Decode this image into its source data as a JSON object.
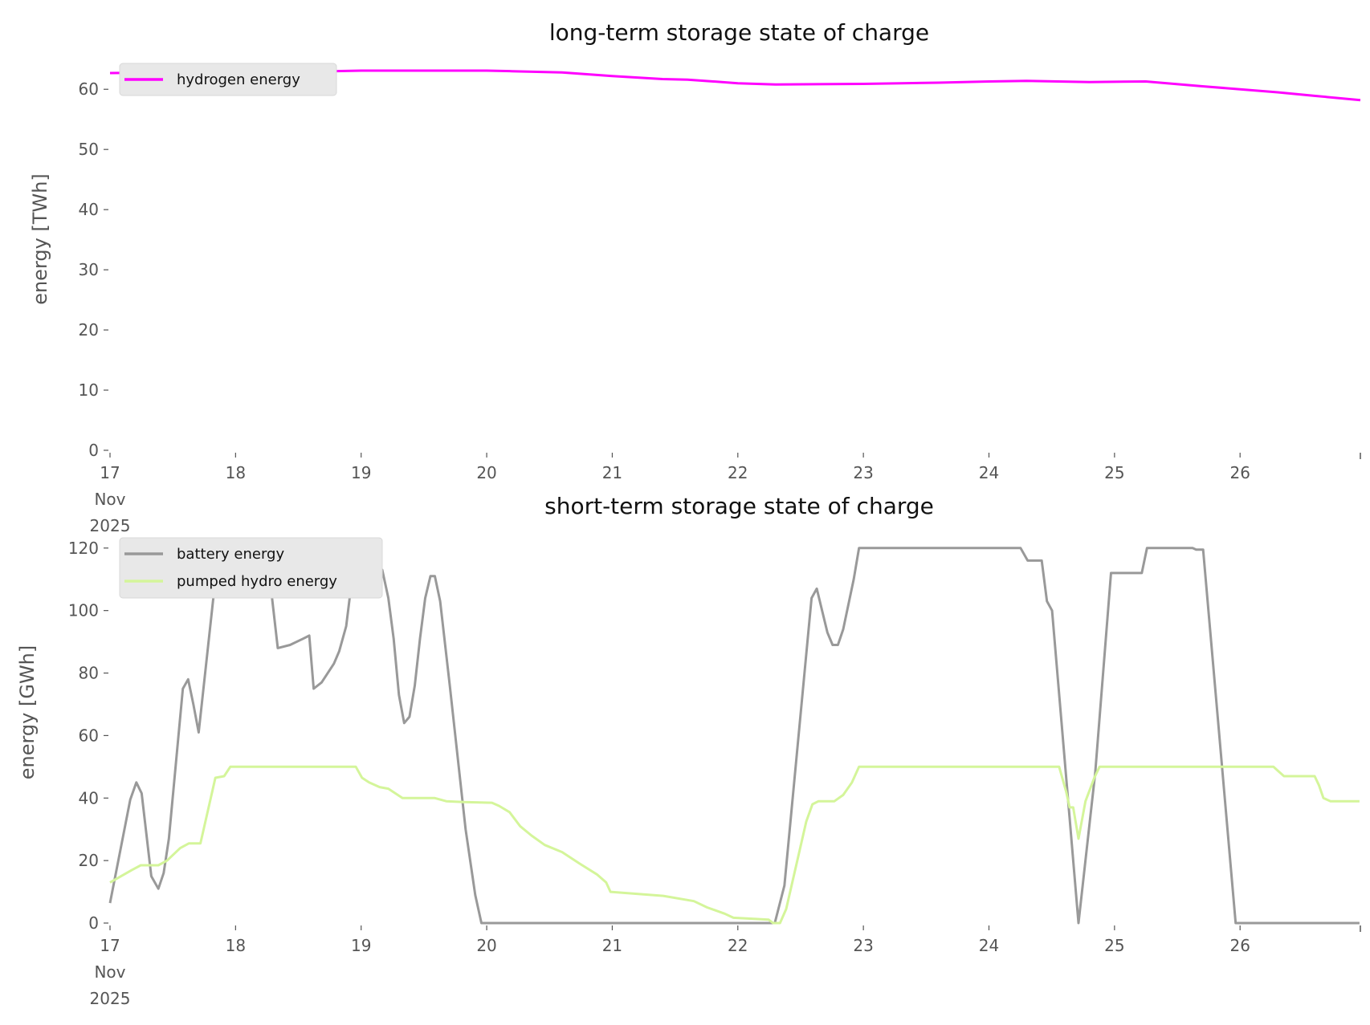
{
  "chart_data": [
    {
      "type": "line",
      "title": "long-term storage state of charge",
      "ylabel": "energy [TWh]",
      "xlabel": "",
      "xlim": [
        17,
        26.958
      ],
      "ylim": [
        0,
        63.5
      ],
      "yticks": [
        0,
        10,
        20,
        30,
        40,
        50,
        60
      ],
      "xticks": [
        {
          "v": 17,
          "label": [
            "17",
            "Nov",
            "2025"
          ]
        },
        {
          "v": 18,
          "label": [
            "18"
          ]
        },
        {
          "v": 19,
          "label": [
            "19"
          ]
        },
        {
          "v": 20,
          "label": [
            "20"
          ]
        },
        {
          "v": 21,
          "label": [
            "21"
          ]
        },
        {
          "v": 22,
          "label": [
            "22"
          ]
        },
        {
          "v": 23,
          "label": [
            "23"
          ]
        },
        {
          "v": 24,
          "label": [
            "24"
          ]
        },
        {
          "v": 25,
          "label": [
            "25"
          ]
        },
        {
          "v": 26,
          "label": [
            "26"
          ]
        }
      ],
      "legend": "top-left",
      "grid": false,
      "series": [
        {
          "name": "hydrogen energy",
          "color": "#ff00ff",
          "x": [
            17,
            17.5,
            18,
            18.5,
            19,
            19.5,
            20,
            20.2,
            20.6,
            21,
            21.4,
            21.6,
            22,
            22.3,
            23,
            23.3,
            23.6,
            24,
            24.3,
            24.8,
            25.25,
            25.7,
            26,
            26.3,
            26.6,
            26.958
          ],
          "y": [
            62.7,
            62.8,
            62.8,
            62.9,
            63.1,
            63.1,
            63.1,
            63.0,
            62.8,
            62.2,
            61.7,
            61.6,
            61.0,
            60.8,
            60.9,
            61.0,
            61.1,
            61.3,
            61.4,
            61.2,
            61.3,
            60.5,
            60.0,
            59.5,
            58.9,
            58.2
          ]
        }
      ]
    },
    {
      "type": "line",
      "title": "short-term storage state of charge",
      "ylabel": "energy [GWh]",
      "xlabel": "",
      "xlim": [
        17,
        26.958
      ],
      "ylim": [
        0,
        122
      ],
      "yticks": [
        0,
        20,
        40,
        60,
        80,
        100,
        120
      ],
      "xticks": [
        {
          "v": 17,
          "label": [
            "17",
            "Nov",
            "2025"
          ]
        },
        {
          "v": 18,
          "label": [
            "18"
          ]
        },
        {
          "v": 19,
          "label": [
            "19"
          ]
        },
        {
          "v": 20,
          "label": [
            "20"
          ]
        },
        {
          "v": 21,
          "label": [
            "21"
          ]
        },
        {
          "v": 22,
          "label": [
            "22"
          ]
        },
        {
          "v": 23,
          "label": [
            "23"
          ]
        },
        {
          "v": 24,
          "label": [
            "24"
          ]
        },
        {
          "v": 25,
          "label": [
            "25"
          ]
        },
        {
          "v": 26,
          "label": [
            "26"
          ]
        }
      ],
      "legend": "top-left",
      "grid": false,
      "series": [
        {
          "name": "battery energy",
          "color": "#999999",
          "x": [
            17,
            17.161,
            17.21,
            17.252,
            17.329,
            17.385,
            17.427,
            17.469,
            17.58,
            17.622,
            17.664,
            17.706,
            17.839,
            17.874,
            18.21,
            18.259,
            18.336,
            18.434,
            18.538,
            18.587,
            18.622,
            18.685,
            18.783,
            18.825,
            18.881,
            18.958,
            19.007,
            19.119,
            19.168,
            19.217,
            19.259,
            19.301,
            19.343,
            19.385,
            19.427,
            19.469,
            19.51,
            19.552,
            19.587,
            19.629,
            19.706,
            19.832,
            19.909,
            19.958,
            22.294,
            22.371,
            22.587,
            22.629,
            22.713,
            22.755,
            22.797,
            22.839,
            22.923,
            22.965,
            24.252,
            24.308,
            24.42,
            24.462,
            24.503,
            24.713,
            24.846,
            24.923,
            24.972,
            25.217,
            25.259,
            25.622,
            25.65,
            25.706,
            25.965,
            26.951
          ],
          "y": [
            6.4,
            39.5,
            45,
            41.5,
            15,
            11,
            16,
            27,
            75,
            78,
            70,
            61,
            110,
            120,
            120,
            115,
            88,
            89,
            91,
            92,
            75,
            77,
            83,
            87,
            95,
            120,
            117,
            115,
            113,
            104,
            91,
            73,
            64,
            66,
            76,
            91,
            104,
            111,
            111,
            103,
            76,
            30,
            9,
            0,
            0,
            12,
            104,
            107,
            93,
            89,
            89,
            94,
            110,
            120,
            120,
            116,
            116,
            103,
            100,
            0,
            48,
            87,
            112,
            112,
            120,
            120,
            119.5,
            119.5,
            0,
            0
          ]
        },
        {
          "name": "pumped hydro energy",
          "color": "#d4f59a",
          "x": [
            17,
            17.175,
            17.245,
            17.385,
            17.455,
            17.559,
            17.629,
            17.72,
            17.839,
            17.909,
            17.958,
            18.958,
            19.007,
            19.063,
            19.147,
            19.217,
            19.329,
            19.587,
            19.678,
            19.818,
            20.042,
            20.098,
            20.182,
            20.266,
            20.357,
            20.462,
            20.601,
            20.741,
            20.881,
            20.951,
            20.986,
            21.406,
            21.65,
            21.755,
            21.895,
            21.965,
            22.245,
            22.28,
            22.336,
            22.385,
            22.545,
            22.594,
            22.643,
            22.769,
            22.839,
            22.909,
            22.965,
            24.559,
            24.615,
            24.643,
            24.671,
            24.713,
            24.769,
            24.839,
            24.881,
            26.266,
            26.308,
            26.35,
            26.594,
            26.629,
            26.664,
            26.72,
            26.951
          ],
          "y": [
            13,
            17,
            18.5,
            18.5,
            20,
            24,
            25.5,
            25.5,
            46.5,
            47,
            50,
            50,
            46.5,
            45,
            43.5,
            43,
            40,
            40,
            39,
            38.7,
            38.5,
            37.5,
            35.5,
            31,
            28,
            25,
            22.7,
            19,
            15.5,
            13,
            10,
            8.7,
            7,
            5,
            3,
            1.7,
            1.1,
            0,
            0,
            4.5,
            32.5,
            38,
            39,
            39,
            41,
            45,
            50,
            50,
            42,
            37,
            37,
            27,
            39,
            46.5,
            50,
            50,
            48.5,
            47,
            47,
            44,
            40,
            39,
            39
          ]
        }
      ]
    }
  ]
}
